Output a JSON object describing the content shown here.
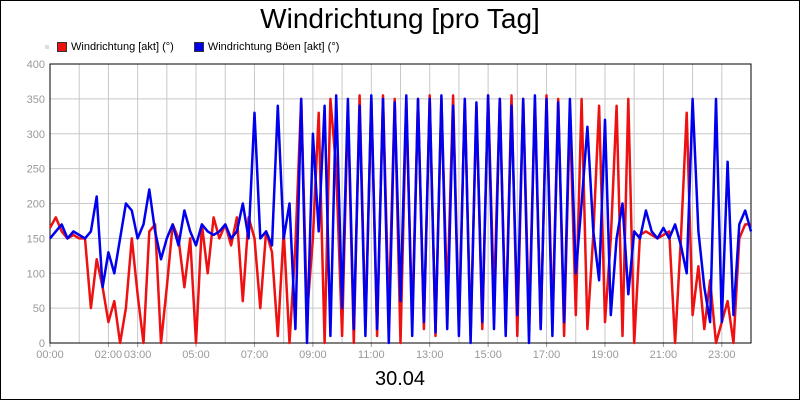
{
  "chart_data": {
    "type": "line",
    "title": "Windrichtung [pro Tag]",
    "xlabel": "30.04",
    "ylabel": "",
    "ylim": [
      0,
      400
    ],
    "y_ticks": [
      0,
      50,
      100,
      150,
      200,
      250,
      300,
      350,
      400
    ],
    "xlim_hours": [
      0,
      24
    ],
    "x_tick_labels": [
      "00:00",
      "02:00",
      "03:00",
      "05:00",
      "07:00",
      "09:00",
      "11:00",
      "13:00",
      "15:00",
      "17:00",
      "19:00",
      "21:00",
      "23:00"
    ],
    "x_tick_hours": [
      0,
      2,
      3,
      5,
      7,
      9,
      11,
      13,
      15,
      17,
      19,
      21,
      23
    ],
    "grid": true,
    "legend": "top-left",
    "series": [
      {
        "name": "Windrichtung [akt] (°)",
        "color": "#ee1111",
        "x": [
          0,
          0.2,
          0.4,
          0.6,
          0.8,
          1.0,
          1.2,
          1.4,
          1.6,
          1.8,
          2.0,
          2.2,
          2.4,
          2.6,
          2.8,
          3.0,
          3.2,
          3.4,
          3.6,
          3.8,
          4.0,
          4.2,
          4.4,
          4.6,
          4.8,
          5.0,
          5.2,
          5.4,
          5.6,
          5.8,
          6.0,
          6.2,
          6.4,
          6.6,
          6.8,
          7.0,
          7.2,
          7.4,
          7.6,
          7.8,
          8.0,
          8.2,
          8.4,
          8.6,
          8.8,
          9.0,
          9.2,
          9.4,
          9.6,
          9.8,
          10.0,
          10.2,
          10.4,
          10.6,
          10.8,
          11.0,
          11.2,
          11.4,
          11.6,
          11.8,
          12.0,
          12.2,
          12.4,
          12.6,
          12.8,
          13.0,
          13.2,
          13.4,
          13.6,
          13.8,
          14.0,
          14.2,
          14.4,
          14.6,
          14.8,
          15.0,
          15.2,
          15.4,
          15.6,
          15.8,
          16.0,
          16.2,
          16.4,
          16.6,
          16.8,
          17.0,
          17.2,
          17.4,
          17.6,
          17.8,
          18.0,
          18.2,
          18.4,
          18.6,
          18.8,
          19.0,
          19.2,
          19.4,
          19.6,
          19.8,
          20.0,
          20.2,
          20.4,
          20.6,
          20.8,
          21.0,
          21.2,
          21.4,
          21.6,
          21.8,
          22.0,
          22.2,
          22.4,
          22.6,
          22.8,
          23.0,
          23.2,
          23.4,
          23.6,
          23.8,
          24.0
        ],
        "y": [
          165,
          180,
          160,
          150,
          155,
          150,
          150,
          50,
          120,
          80,
          30,
          60,
          0,
          50,
          150,
          70,
          0,
          160,
          170,
          0,
          80,
          170,
          150,
          80,
          150,
          0,
          170,
          100,
          180,
          150,
          170,
          140,
          180,
          60,
          180,
          150,
          50,
          160,
          130,
          10,
          160,
          0,
          140,
          350,
          40,
          150,
          330,
          0,
          350,
          250,
          10,
          340,
          0,
          355,
          20,
          350,
          10,
          355,
          40,
          350,
          0,
          345,
          30,
          350,
          20,
          355,
          10,
          350,
          60,
          355,
          20,
          350,
          10,
          340,
          20,
          355,
          60,
          350,
          20,
          355,
          10,
          350,
          30,
          345,
          20,
          355,
          30,
          350,
          10,
          330,
          40,
          350,
          20,
          155,
          340,
          30,
          150,
          340,
          10,
          350,
          0,
          155,
          160,
          155,
          150,
          155,
          160,
          0,
          150,
          330,
          40,
          110,
          20,
          90,
          0,
          30,
          60,
          0,
          150,
          170,
          170
        ]
      },
      {
        "name": "Windrichtung Böen [akt] (°)",
        "color": "#0000ee",
        "x": [
          0,
          0.2,
          0.4,
          0.6,
          0.8,
          1.0,
          1.2,
          1.4,
          1.6,
          1.8,
          2.0,
          2.2,
          2.4,
          2.6,
          2.8,
          3.0,
          3.2,
          3.4,
          3.6,
          3.8,
          4.0,
          4.2,
          4.4,
          4.6,
          4.8,
          5.0,
          5.2,
          5.4,
          5.6,
          5.8,
          6.0,
          6.2,
          6.4,
          6.6,
          6.8,
          7.0,
          7.2,
          7.4,
          7.6,
          7.8,
          8.0,
          8.2,
          8.4,
          8.6,
          8.8,
          9.0,
          9.2,
          9.4,
          9.6,
          9.8,
          10.0,
          10.2,
          10.4,
          10.6,
          10.8,
          11.0,
          11.2,
          11.4,
          11.6,
          11.8,
          12.0,
          12.2,
          12.4,
          12.6,
          12.8,
          13.0,
          13.2,
          13.4,
          13.6,
          13.8,
          14.0,
          14.2,
          14.4,
          14.6,
          14.8,
          15.0,
          15.2,
          15.4,
          15.6,
          15.8,
          16.0,
          16.2,
          16.4,
          16.6,
          16.8,
          17.0,
          17.2,
          17.4,
          17.6,
          17.8,
          18.0,
          18.2,
          18.4,
          18.6,
          18.8,
          19.0,
          19.2,
          19.4,
          19.6,
          19.8,
          20.0,
          20.2,
          20.4,
          20.6,
          20.8,
          21.0,
          21.2,
          21.4,
          21.6,
          21.8,
          22.0,
          22.2,
          22.4,
          22.6,
          22.8,
          23.0,
          23.2,
          23.4,
          23.6,
          23.8,
          24.0
        ],
        "y": [
          150,
          160,
          170,
          150,
          160,
          155,
          150,
          160,
          210,
          80,
          130,
          100,
          150,
          200,
          190,
          150,
          170,
          220,
          160,
          120,
          150,
          170,
          140,
          190,
          160,
          140,
          170,
          160,
          155,
          160,
          170,
          150,
          160,
          200,
          150,
          330,
          150,
          160,
          140,
          340,
          150,
          200,
          20,
          350,
          0,
          300,
          160,
          340,
          10,
          355,
          50,
          350,
          20,
          340,
          10,
          355,
          20,
          350,
          0,
          345,
          60,
          355,
          10,
          350,
          30,
          350,
          15,
          355,
          20,
          340,
          10,
          350,
          0,
          345,
          30,
          355,
          20,
          350,
          10,
          340,
          40,
          350,
          0,
          355,
          20,
          350,
          10,
          345,
          30,
          350,
          100,
          200,
          310,
          160,
          90,
          320,
          40,
          150,
          200,
          70,
          160,
          150,
          190,
          160,
          150,
          165,
          150,
          170,
          140,
          100,
          350,
          160,
          80,
          30,
          350,
          30,
          260,
          40,
          170,
          190,
          160
        ]
      }
    ]
  }
}
